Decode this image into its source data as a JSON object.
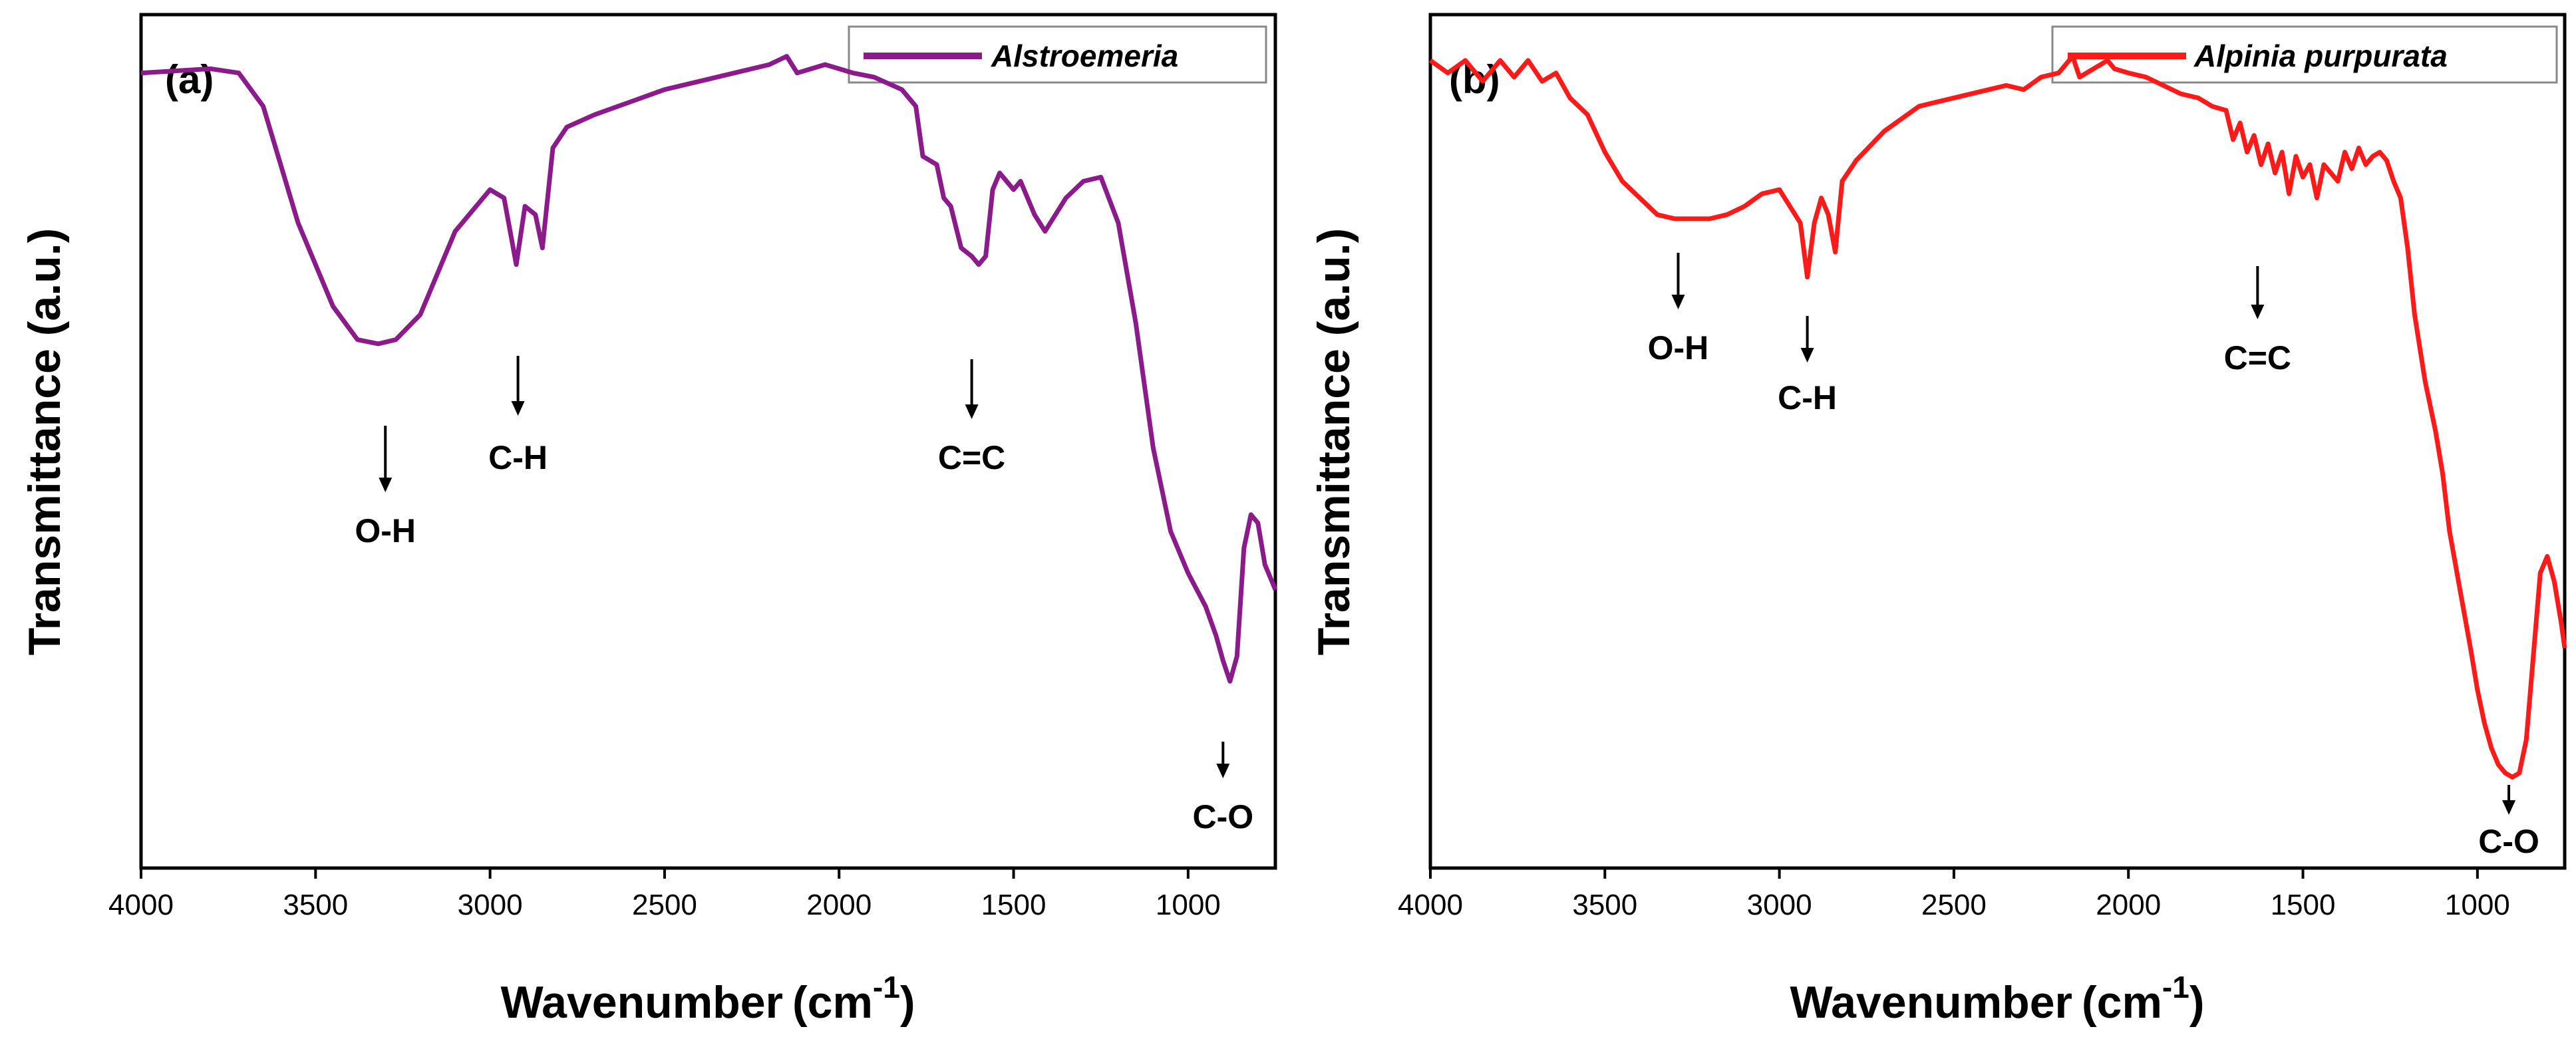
{
  "chart_data": [
    {
      "type": "line",
      "panel_label": "(a)",
      "xlabel": "Wavenumber",
      "xlabel_unit_prefix": "(cm",
      "xlabel_unit_sup": "-1",
      "xlabel_unit_suffix": ")",
      "ylabel": "Transmittance (a.u.)",
      "xlim": [
        4000,
        750
      ],
      "ylim": [
        0,
        100
      ],
      "xticks": [
        4000,
        3500,
        3000,
        2500,
        2000,
        1500,
        1000
      ],
      "yticks_shown": false,
      "legend": {
        "position": "top-right"
      },
      "series": [
        {
          "name": "Alstroemeria",
          "color": "#8B1A8B",
          "x": [
            4000,
            3800,
            3720,
            3650,
            3550,
            3450,
            3380,
            3320,
            3270,
            3200,
            3100,
            3000,
            2960,
            2925,
            2900,
            2870,
            2850,
            2820,
            2780,
            2700,
            2600,
            2500,
            2400,
            2300,
            2200,
            2150,
            2120,
            2080,
            2040,
            2000,
            1960,
            1900,
            1820,
            1780,
            1760,
            1720,
            1700,
            1680,
            1650,
            1620,
            1600,
            1580,
            1560,
            1540,
            1500,
            1480,
            1440,
            1410,
            1380,
            1350,
            1300,
            1250,
            1200,
            1150,
            1100,
            1050,
            1000,
            950,
            920,
            900,
            880,
            860,
            840,
            820,
            800,
            780,
            760,
            750
          ],
          "y": [
            95,
            95.5,
            95,
            91,
            77,
            67,
            63,
            62.5,
            63,
            66,
            76,
            81,
            80,
            72,
            79,
            78,
            74,
            86,
            88.5,
            90,
            91.5,
            93,
            94,
            95,
            96,
            97,
            95,
            95.5,
            96,
            95.5,
            95,
            94.5,
            93,
            91,
            85,
            84,
            80,
            79,
            74,
            73,
            72,
            73,
            81,
            83,
            81,
            82,
            78,
            76,
            78,
            80,
            82,
            82.5,
            77,
            65,
            50,
            40,
            35,
            31,
            27.5,
            24.5,
            22,
            25,
            38,
            42,
            41,
            36,
            34,
            33
          ]
        }
      ],
      "annotations": [
        {
          "label": "O-H",
          "x": 3300
        },
        {
          "label": "C-H",
          "x": 2920
        },
        {
          "label": "C=C",
          "x": 1620
        },
        {
          "label": "C-O",
          "x": 900
        }
      ]
    },
    {
      "type": "line",
      "panel_label": "(b)",
      "xlabel": "Wavenumber",
      "xlabel_unit_prefix": "(cm",
      "xlabel_unit_sup": "-1",
      "xlabel_unit_suffix": ")",
      "ylabel": "Transmittance (a.u.)",
      "xlim": [
        4000,
        750
      ],
      "ylim": [
        0,
        100
      ],
      "xticks": [
        4000,
        3500,
        3000,
        2500,
        2000,
        1500,
        1000
      ],
      "yticks_shown": false,
      "legend": {
        "position": "top-right"
      },
      "series": [
        {
          "name": "Alpinia purpurata",
          "color": "#FF1A1A",
          "x": [
            4000,
            3950,
            3900,
            3850,
            3800,
            3760,
            3720,
            3680,
            3640,
            3600,
            3550,
            3500,
            3450,
            3400,
            3350,
            3300,
            3250,
            3200,
            3150,
            3100,
            3050,
            3000,
            2970,
            2940,
            2920,
            2900,
            2880,
            2860,
            2840,
            2820,
            2780,
            2700,
            2600,
            2500,
            2400,
            2350,
            2300,
            2250,
            2200,
            2160,
            2140,
            2100,
            2060,
            2040,
            2000,
            1950,
            1900,
            1850,
            1800,
            1760,
            1720,
            1700,
            1680,
            1660,
            1640,
            1620,
            1600,
            1580,
            1560,
            1540,
            1520,
            1500,
            1480,
            1460,
            1440,
            1420,
            1400,
            1380,
            1360,
            1340,
            1320,
            1300,
            1280,
            1260,
            1240,
            1220,
            1200,
            1180,
            1150,
            1120,
            1100,
            1080,
            1050,
            1020,
            1000,
            980,
            960,
            940,
            920,
            900,
            880,
            860,
            840,
            820,
            800,
            780,
            760,
            750
          ],
          "y": [
            96.5,
            95,
            96.5,
            94,
            96.5,
            94.5,
            96.5,
            94,
            95,
            92,
            90,
            85.5,
            82,
            80,
            78,
            77.5,
            77.5,
            77.5,
            78,
            79,
            80.5,
            81,
            79,
            77,
            70.5,
            77,
            80,
            78,
            73.5,
            82,
            84.5,
            88,
            91,
            92,
            93,
            93.5,
            93,
            94.5,
            95,
            97,
            94.5,
            95.5,
            96.5,
            95.5,
            95,
            94.5,
            93.5,
            92.5,
            92,
            91,
            90.5,
            87,
            89,
            85.5,
            87.5,
            84,
            86.5,
            83,
            85.5,
            80.5,
            85,
            82.5,
            84,
            80,
            84,
            83,
            82,
            85.5,
            83.5,
            86,
            84,
            85,
            85.5,
            84.5,
            82,
            80,
            74,
            66,
            58,
            52,
            47,
            40,
            33,
            26,
            21,
            17,
            14,
            12,
            11,
            10.5,
            11,
            15,
            25,
            35,
            37,
            34,
            29,
            26
          ]
        }
      ],
      "annotations": [
        {
          "label": "O-H",
          "x": 3290
        },
        {
          "label": "C-H",
          "x": 2920
        },
        {
          "label": "C=C",
          "x": 1630
        },
        {
          "label": "C-O",
          "x": 910
        }
      ]
    }
  ]
}
